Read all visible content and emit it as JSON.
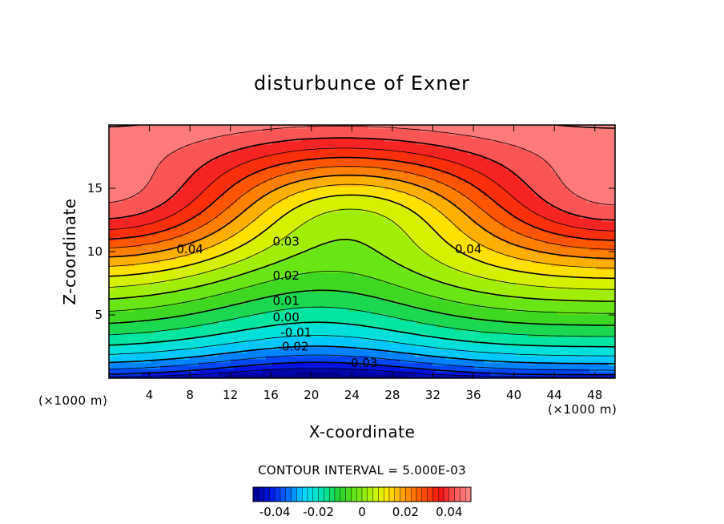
{
  "chart_data": {
    "type": "contour",
    "title": "disturbunce of Exner",
    "xlabel": "X-coordinate",
    "ylabel": "Z-coordinate",
    "x_unit_left": "(×1000 m)",
    "x_unit_right": "(×1000 m)",
    "xlim": [
      0,
      50
    ],
    "ylim": [
      0,
      20
    ],
    "xticks": [
      4,
      8,
      12,
      16,
      20,
      24,
      28,
      32,
      36,
      40,
      44,
      48
    ],
    "yticks": [
      5,
      10,
      15
    ],
    "contour_interval_text": "CONTOUR INTERVAL = 5.000E-03",
    "contour_interval": 0.005,
    "colorbar": {
      "range": [
        -0.05,
        0.05
      ],
      "tick_values": [
        -0.04,
        -0.02,
        0,
        0.02,
        0.04
      ],
      "tick_labels": [
        "-0.04",
        "-0.02",
        "0",
        "0.02",
        "0.04"
      ]
    },
    "contour_labels": [
      {
        "text": "0.04",
        "x": 8,
        "z": 10.2
      },
      {
        "text": "0.04",
        "x": 35.5,
        "z": 10.2
      },
      {
        "text": "0.03",
        "x": 17.5,
        "z": 10.8
      },
      {
        "text": "0.02",
        "x": 17.5,
        "z": 8.1
      },
      {
        "text": "0.01",
        "x": 17.5,
        "z": 6.1
      },
      {
        "text": "0.00",
        "x": 17.5,
        "z": 4.8
      },
      {
        "text": "-0.01",
        "x": 18.5,
        "z": 3.6
      },
      {
        "text": "-0.02",
        "x": 18.2,
        "z": 2.5
      },
      {
        "text": "-0.03",
        "x": 25,
        "z": 1.2
      }
    ],
    "field": {
      "description_of_values": "Exner pressure disturbance, minimum about -0.045 near x=20,z=0; maxima about 0.05 near x=0 and x=50 at z=13.5",
      "min": -0.045,
      "max": 0.05
    }
  }
}
